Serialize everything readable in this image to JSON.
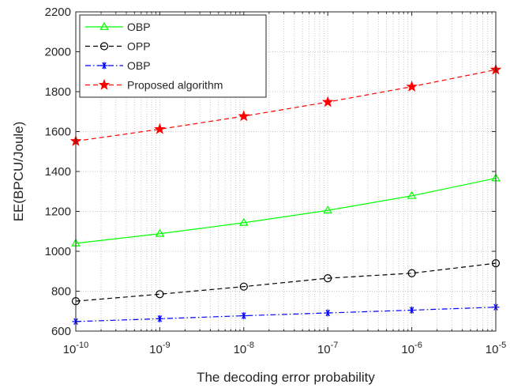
{
  "chart_data": {
    "type": "line",
    "title": "",
    "xlabel": "The decoding error probability",
    "ylabel": "EE(BPCU/Joule)",
    "x_scale": "log",
    "x": [
      1e-10,
      1e-09,
      1e-08,
      1e-07,
      1e-06,
      1e-05
    ],
    "x_tick_labels": [
      {
        "base": "10",
        "exp": "-10"
      },
      {
        "base": "10",
        "exp": "-9"
      },
      {
        "base": "10",
        "exp": "-8"
      },
      {
        "base": "10",
        "exp": "-7"
      },
      {
        "base": "10",
        "exp": "-6"
      },
      {
        "base": "10",
        "exp": "-5"
      }
    ],
    "xlim": [
      1e-10,
      1e-05
    ],
    "ylim": [
      600,
      2200
    ],
    "y_ticks": [
      600,
      800,
      1000,
      1200,
      1400,
      1600,
      1800,
      2000,
      2200
    ],
    "grid": true,
    "legend_position": "top-left",
    "series": [
      {
        "name": "OBP",
        "color": "#00ff00",
        "line_style": "solid",
        "marker": "triangle",
        "values": [
          1040,
          1088,
          1143,
          1205,
          1278,
          1366
        ]
      },
      {
        "name": "OPP",
        "color": "#000000",
        "line_style": "dashed",
        "marker": "circle",
        "values": [
          750,
          785,
          823,
          865,
          890,
          940
        ]
      },
      {
        "name": "OBP",
        "color": "#0000ff",
        "line_style": "dashdot",
        "marker": "asterisk",
        "values": [
          648,
          662,
          677,
          691,
          705,
          720
        ]
      },
      {
        "name": "Proposed algorithm",
        "color": "#ff0000",
        "line_style": "dashed",
        "marker": "star",
        "values": [
          1552,
          1612,
          1677,
          1748,
          1825,
          1910
        ]
      }
    ]
  }
}
